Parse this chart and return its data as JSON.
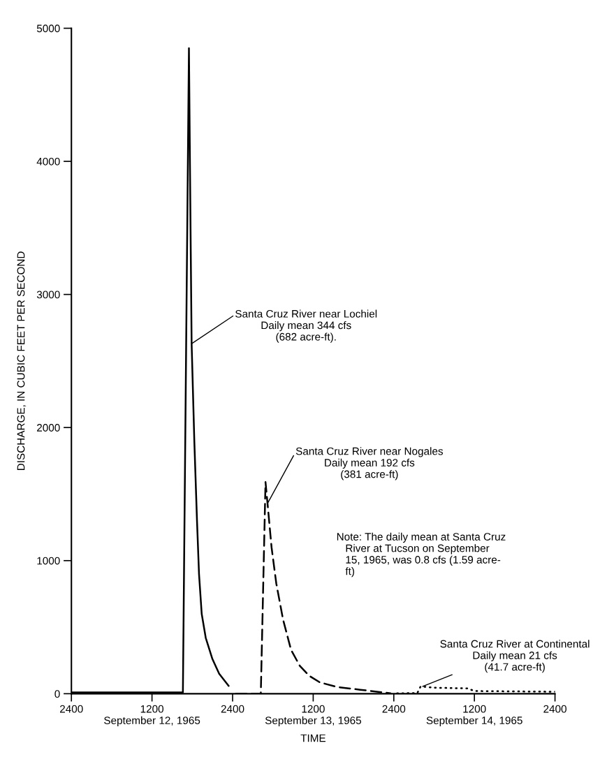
{
  "chart_data": {
    "type": "line",
    "xlabel": "TIME",
    "ylabel": "DISCHARGE, IN CUBIC FEET PER SECOND",
    "xlim": [
      "1965-09-12T00:00",
      "1965-09-15T00:00"
    ],
    "ylim": [
      0,
      5000
    ],
    "xticks": [
      {
        "value": "1965-09-12T00:00",
        "label": "2400"
      },
      {
        "value": "1965-09-12T12:00",
        "label": "1200\nSeptember 12, 1965"
      },
      {
        "value": "1965-09-13T00:00",
        "label": "2400"
      },
      {
        "value": "1965-09-13T12:00",
        "label": "1200\nSeptember 13, 1965"
      },
      {
        "value": "1965-09-14T00:00",
        "label": "2400"
      },
      {
        "value": "1965-09-14T12:00",
        "label": "1200\nSeptember 14, 1965"
      },
      {
        "value": "1965-09-15T00:00",
        "label": "2400"
      }
    ],
    "yticks": [
      0,
      1000,
      2000,
      3000,
      4000,
      5000
    ],
    "series": [
      {
        "color": "#000000",
        "line_style": "solid",
        "x": [
          "1965-09-12T00:00",
          "1965-09-12T16:36",
          "1965-09-12T17:30",
          "1965-09-12T17:42",
          "1965-09-12T17:54",
          "1965-09-12T18:18",
          "1965-09-12T18:42",
          "1965-09-12T19:00",
          "1965-09-12T19:24",
          "1965-09-12T20:00",
          "1965-09-12T21:00",
          "1965-09-12T22:00",
          "1965-09-12T23:24"
        ],
        "values": [
          10,
          10,
          4850,
          3700,
          2630,
          1900,
          1300,
          900,
          600,
          420,
          260,
          150,
          60
        ]
      },
      {
        "color": "#000000",
        "line_style": "dashed",
        "x": [
          "1965-09-13T00:30",
          "1965-09-13T04:12",
          "1965-09-13T04:54",
          "1965-09-13T05:12",
          "1965-09-13T05:48",
          "1965-09-13T06:30",
          "1965-09-13T07:30",
          "1965-09-13T08:42",
          "1965-09-13T10:00",
          "1965-09-13T11:24",
          "1965-09-13T13:00",
          "1965-09-13T15:36",
          "1965-09-13T19:00",
          "1965-09-13T23:30"
        ],
        "values": [
          0,
          0,
          1590,
          1430,
          1100,
          830,
          560,
          330,
          210,
          135,
          85,
          50,
          30,
          3
        ]
      },
      {
        "color": "#000000",
        "line_style": "dotted",
        "x": [
          "1965-09-14T00:30",
          "1965-09-14T03:30",
          "1965-09-14T04:00",
          "1965-09-14T06:00",
          "1965-09-14T11:00",
          "1965-09-14T12:00",
          "1965-09-15T00:00"
        ],
        "values": [
          3,
          5,
          55,
          45,
          40,
          20,
          15
        ]
      }
    ],
    "annotations": [
      {
        "text": "Santa Cruz River near Lochiel\nDaily mean 344 cfs\n(682 acre-ft).",
        "x": "1965-09-12T17:54",
        "y": 2630
      },
      {
        "text": "Santa Cruz River near Nogales\nDaily mean 192 cfs\n(381 acre-ft)",
        "x": "1965-09-13T05:12",
        "y": 1430
      },
      "Note: The daily mean at Santa Cruz\n   River at Tucson on September\n   15, 1965, was 0.8 cfs (1.59 acre-\n   ft)",
      {
        "text": "Santa Cruz River at Continental\nDaily mean 21 cfs\n(41.7 acre-ft)",
        "x": "1965-09-14T04:18",
        "y": 55
      }
    ]
  }
}
